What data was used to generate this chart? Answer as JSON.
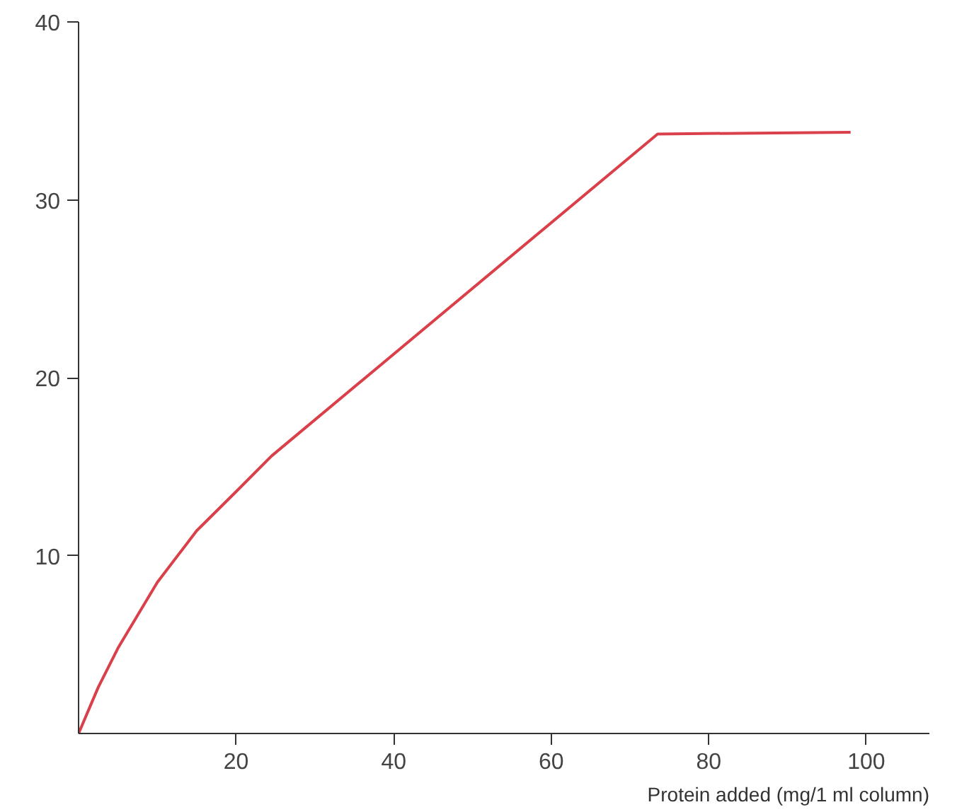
{
  "chart_data": {
    "type": "line",
    "xlabel": "Protein added (mg/1 ml column)",
    "x": [
      0,
      2.5,
      5,
      10,
      15,
      20,
      24.5,
      73.5,
      98
    ],
    "series": [
      {
        "color": "#d9404a",
        "values": [
          0,
          2.6,
          4.8,
          8.5,
          11.4,
          13.6,
          15.6,
          33.7,
          33.8
        ]
      }
    ],
    "xlim": [
      0,
      108
    ],
    "ylim": [
      0,
      40
    ],
    "xticks": [
      20,
      40,
      60,
      80,
      100
    ],
    "yticks": [
      10,
      20,
      30,
      40
    ],
    "grid": false,
    "marker": "none",
    "line_style": "solid"
  }
}
